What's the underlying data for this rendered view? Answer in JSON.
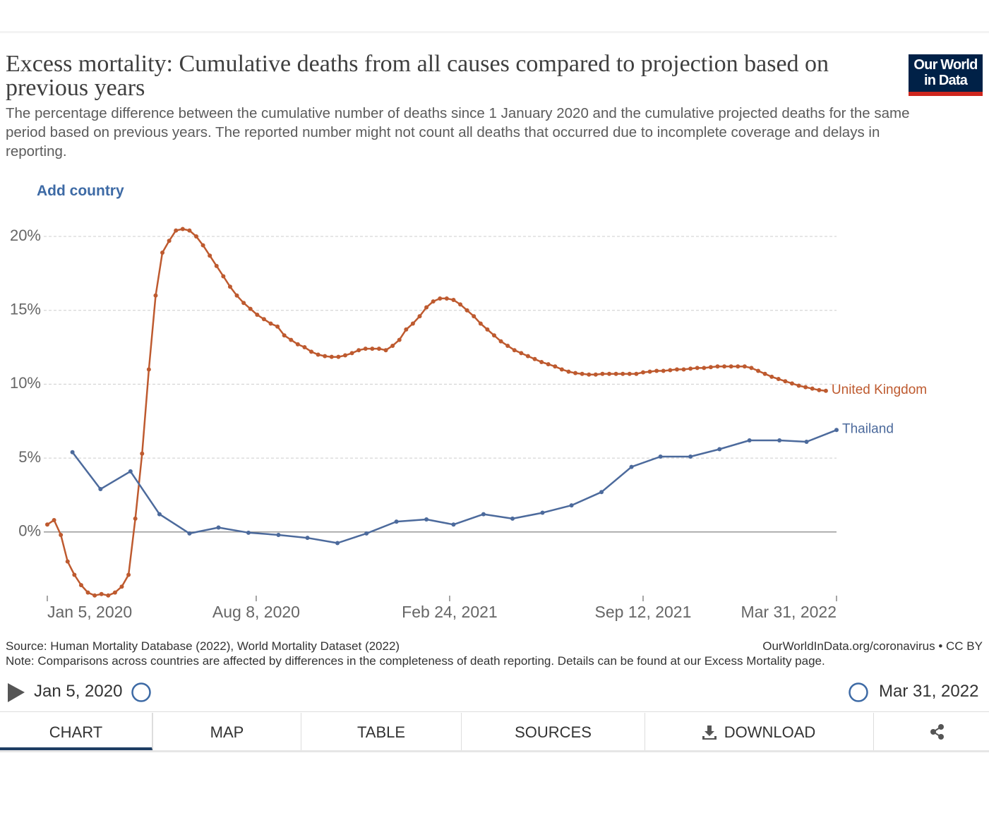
{
  "header": {
    "logo": [
      "Our World",
      "in Data"
    ]
  },
  "controls": {
    "add_country": "Add country"
  },
  "chart_data": {
    "type": "line",
    "title": "Excess mortality: Cumulative deaths from all causes compared to projection based on previous years",
    "subtitle": "The percentage difference between the cumulative number of deaths since 1 January 2020 and the cumulative projected deaths for the same period based on previous years. The reported number might not count all deaths that occurred due to incomplete coverage and delays in reporting.",
    "xlim": [
      "2020-01-05",
      "2022-03-31"
    ],
    "xticks": [
      {
        "value": "2020-01-05",
        "label": "Jan 5, 2020"
      },
      {
        "value": "2020-08-08",
        "label": "Aug 8, 2020"
      },
      {
        "value": "2021-02-24",
        "label": "Feb 24, 2021"
      },
      {
        "value": "2021-09-12",
        "label": "Sep 12, 2021"
      },
      {
        "value": "2022-03-31",
        "label": "Mar 31, 2022"
      }
    ],
    "ylim": [
      -4.5,
      20
    ],
    "yticks": [
      {
        "value": 0,
        "label": "0%"
      },
      {
        "value": 5,
        "label": "5%"
      },
      {
        "value": 10,
        "label": "10%"
      },
      {
        "value": 15,
        "label": "15%"
      },
      {
        "value": 20,
        "label": "20%"
      }
    ],
    "grid": true,
    "series": [
      {
        "name": "United Kingdom",
        "color": "#be5a2f",
        "x": [
          "2020-01-05",
          "2020-01-12",
          "2020-01-19",
          "2020-01-26",
          "2020-02-02",
          "2020-02-09",
          "2020-02-16",
          "2020-02-23",
          "2020-03-01",
          "2020-03-08",
          "2020-03-15",
          "2020-03-22",
          "2020-03-29",
          "2020-04-05",
          "2020-04-12",
          "2020-04-19",
          "2020-04-26",
          "2020-05-03",
          "2020-05-10",
          "2020-05-17",
          "2020-05-24",
          "2020-05-31",
          "2020-06-07",
          "2020-06-14",
          "2020-06-21",
          "2020-06-28",
          "2020-07-05",
          "2020-07-12",
          "2020-07-19",
          "2020-07-26",
          "2020-08-02",
          "2020-08-09",
          "2020-08-16",
          "2020-08-23",
          "2020-08-30",
          "2020-09-06",
          "2020-09-13",
          "2020-09-20",
          "2020-09-27",
          "2020-10-04",
          "2020-10-11",
          "2020-10-18",
          "2020-10-25",
          "2020-11-01",
          "2020-11-08",
          "2020-11-15",
          "2020-11-22",
          "2020-11-29",
          "2020-12-06",
          "2020-12-13",
          "2020-12-20",
          "2020-12-27",
          "2021-01-03",
          "2021-01-10",
          "2021-01-17",
          "2021-01-24",
          "2021-01-31",
          "2021-02-07",
          "2021-02-14",
          "2021-02-21",
          "2021-02-28",
          "2021-03-07",
          "2021-03-14",
          "2021-03-21",
          "2021-03-28",
          "2021-04-04",
          "2021-04-11",
          "2021-04-18",
          "2021-04-25",
          "2021-05-02",
          "2021-05-09",
          "2021-05-16",
          "2021-05-23",
          "2021-05-30",
          "2021-06-06",
          "2021-06-13",
          "2021-06-20",
          "2021-06-27",
          "2021-07-04",
          "2021-07-11",
          "2021-07-18",
          "2021-07-25",
          "2021-08-01",
          "2021-08-08",
          "2021-08-15",
          "2021-08-22",
          "2021-08-29",
          "2021-09-05",
          "2021-09-12",
          "2021-09-19",
          "2021-09-26",
          "2021-10-03",
          "2021-10-10",
          "2021-10-17",
          "2021-10-24",
          "2021-10-31",
          "2021-11-07",
          "2021-11-14",
          "2021-11-21",
          "2021-11-28",
          "2021-12-05",
          "2021-12-12",
          "2021-12-19",
          "2021-12-26",
          "2022-01-02",
          "2022-01-09",
          "2022-01-16",
          "2022-01-23",
          "2022-01-30",
          "2022-02-06",
          "2022-02-13",
          "2022-02-20",
          "2022-02-27",
          "2022-03-06",
          "2022-03-13",
          "2022-03-20"
        ],
        "values": [
          0.5,
          0.8,
          -0.2,
          -2.0,
          -2.9,
          -3.6,
          -4.1,
          -4.3,
          -4.2,
          -4.3,
          -4.1,
          -3.7,
          -2.9,
          0.9,
          5.3,
          11.0,
          16.0,
          18.9,
          19.7,
          20.4,
          20.5,
          20.4,
          20.0,
          19.4,
          18.7,
          18.0,
          17.3,
          16.6,
          16.0,
          15.5,
          15.1,
          14.7,
          14.4,
          14.1,
          13.9,
          13.3,
          13.0,
          12.7,
          12.5,
          12.2,
          12.0,
          11.9,
          11.85,
          11.85,
          11.95,
          12.1,
          12.3,
          12.4,
          12.4,
          12.4,
          12.3,
          12.6,
          13.0,
          13.7,
          14.1,
          14.6,
          15.2,
          15.6,
          15.8,
          15.8,
          15.7,
          15.4,
          15.0,
          14.6,
          14.1,
          13.7,
          13.3,
          12.9,
          12.6,
          12.3,
          12.1,
          11.9,
          11.7,
          11.5,
          11.35,
          11.2,
          11.0,
          10.85,
          10.75,
          10.7,
          10.65,
          10.65,
          10.7,
          10.7,
          10.7,
          10.7,
          10.7,
          10.7,
          10.8,
          10.85,
          10.9,
          10.9,
          10.95,
          11.0,
          11.0,
          11.05,
          11.1,
          11.1,
          11.15,
          11.2,
          11.2,
          11.2,
          11.2,
          11.2,
          11.1,
          10.9,
          10.7,
          10.5,
          10.35,
          10.2,
          10.05,
          9.9,
          9.8,
          9.7,
          9.6,
          9.55
        ]
      },
      {
        "name": "Thailand",
        "color": "#4c6a9c",
        "x": [
          "2020-01-31",
          "2020-02-29",
          "2020-03-31",
          "2020-04-30",
          "2020-05-31",
          "2020-06-30",
          "2020-07-31",
          "2020-08-31",
          "2020-09-30",
          "2020-10-31",
          "2020-11-30",
          "2020-12-31",
          "2021-01-31",
          "2021-02-28",
          "2021-03-31",
          "2021-04-30",
          "2021-05-31",
          "2021-06-30",
          "2021-07-31",
          "2021-08-31",
          "2021-09-30",
          "2021-10-31",
          "2021-11-30",
          "2021-12-31",
          "2022-01-31",
          "2022-02-28",
          "2022-03-31"
        ],
        "values": [
          5.4,
          2.9,
          4.1,
          1.2,
          -0.1,
          0.3,
          -0.05,
          -0.2,
          -0.4,
          -0.75,
          -0.1,
          0.7,
          0.85,
          0.5,
          1.2,
          0.9,
          1.3,
          1.8,
          2.7,
          4.4,
          5.1,
          5.1,
          5.6,
          6.2,
          6.2,
          6.1,
          6.9
        ]
      }
    ]
  },
  "footer": {
    "source": "Source: Human Mortality Database (2022), World Mortality Dataset (2022)",
    "note": "Note: Comparisons across countries are affected by differences in the completeness of death reporting. Details can be found at our Excess Mortality page.",
    "license": "OurWorldInData.org/coronavirus • CC BY"
  },
  "timeline": {
    "start": "Jan 5, 2020",
    "end": "Mar 31, 2022"
  },
  "tabs": [
    "CHART",
    "MAP",
    "TABLE",
    "SOURCES",
    "DOWNLOAD"
  ]
}
